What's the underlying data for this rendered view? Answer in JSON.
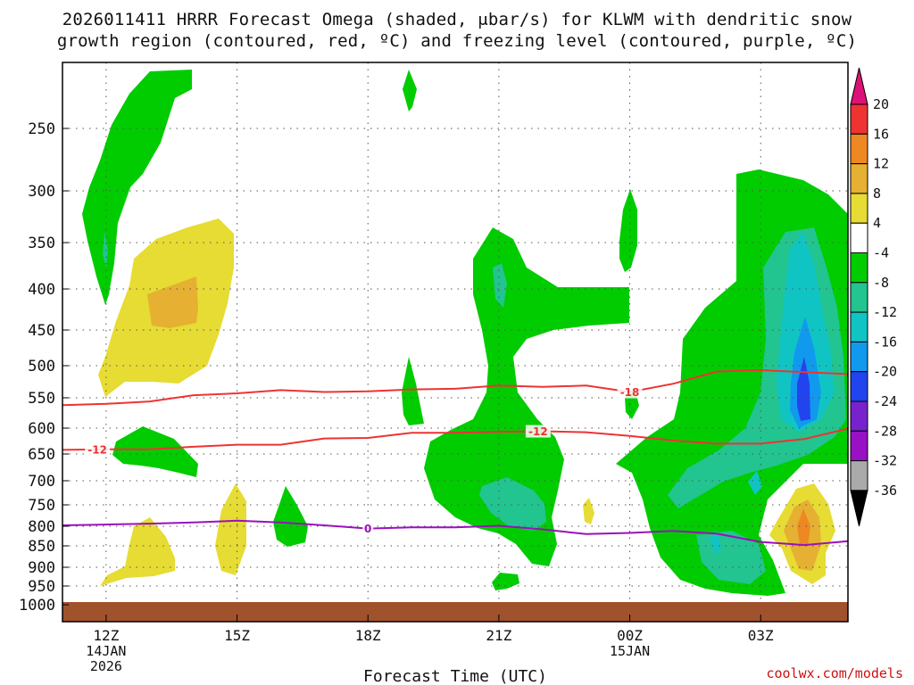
{
  "title": {
    "line1": "2026011411 HRRR Forecast Omega (shaded, μbar/s) for KLWM with dendritic snow",
    "line2": "growth region (contoured, red, ºC) and freezing level (contoured, purple, ºC)"
  },
  "credit": "coolwx.com/models",
  "chart_data": {
    "type": "heatmap",
    "title": "2026011411 HRRR Forecast Omega (shaded, μbar/s) for KLWM with dendritic snow growth region (contoured, red, ºC) and freezing level (contoured, purple, ºC)",
    "xlabel": "Forecast Time (UTC)",
    "ylabel": "",
    "x_ticks": [
      {
        "hour": 12,
        "label": "12Z",
        "sub1": "14JAN",
        "sub2": "2026"
      },
      {
        "hour": 15,
        "label": "15Z",
        "sub1": "",
        "sub2": ""
      },
      {
        "hour": 18,
        "label": "18Z",
        "sub1": "",
        "sub2": ""
      },
      {
        "hour": 21,
        "label": "21Z",
        "sub1": "",
        "sub2": ""
      },
      {
        "hour": 24,
        "label": "00Z",
        "sub1": "15JAN",
        "sub2": ""
      },
      {
        "hour": 27,
        "label": "03Z",
        "sub1": "",
        "sub2": ""
      }
    ],
    "x_range_hours": [
      11,
      29
    ],
    "y_ticks": [
      250,
      300,
      350,
      400,
      450,
      500,
      550,
      600,
      650,
      700,
      750,
      800,
      850,
      900,
      950,
      1000
    ],
    "y_range_hpa": [
      1000,
      200
    ],
    "y_scale": "log",
    "grid": true,
    "colorbar": {
      "labels": [
        "20",
        "16",
        "12",
        "8",
        "4",
        "-4",
        "-8",
        "-12",
        "-16",
        "-20",
        "-24",
        "-28",
        "-32",
        "-36"
      ],
      "colors": [
        "#dd1177",
        "#ee3333",
        "#ee8822",
        "#e6b033",
        "#e6dc33",
        "#ffffff",
        "#00cc00",
        "#22c490",
        "#11c4c4",
        "#1199ee",
        "#2244ee",
        "#7722cc",
        "#9911c4",
        "#aaaaaa",
        "#000000"
      ]
    },
    "contours": [
      {
        "name": "-18",
        "color": "#ee3333",
        "x": [
          11,
          12,
          13,
          14,
          15,
          16,
          17,
          18,
          19,
          20,
          21,
          22,
          23,
          24,
          25,
          26,
          27,
          28,
          29
        ],
        "y": [
          562,
          560,
          556,
          546,
          543,
          538,
          541,
          540,
          537,
          536,
          531,
          533,
          531,
          541,
          528,
          509,
          507,
          510,
          513
        ]
      },
      {
        "name": "-12",
        "color": "#ee3333",
        "x": [
          11,
          12,
          13,
          14,
          15,
          16,
          17,
          18,
          19,
          20,
          21,
          22,
          23,
          24,
          25,
          26,
          27,
          28,
          29
        ],
        "y": [
          642,
          641,
          641,
          636,
          632,
          632,
          620,
          619,
          609,
          609,
          607,
          606,
          608,
          615,
          624,
          630,
          630,
          621,
          601
        ]
      },
      {
        "name": "0",
        "color": "#9911bb",
        "x": [
          11,
          12,
          13,
          14,
          15,
          16,
          17,
          18,
          19,
          20,
          21,
          22,
          23,
          24,
          25,
          26,
          27,
          28,
          29
        ],
        "y": [
          798,
          796,
          794,
          791,
          787,
          791,
          798,
          806,
          803,
          803,
          799,
          808,
          820,
          817,
          812,
          819,
          840,
          848,
          838
        ]
      }
    ],
    "surface": {
      "label": "ground",
      "color": "#a0522d",
      "pressure_hpa": 1000
    }
  }
}
